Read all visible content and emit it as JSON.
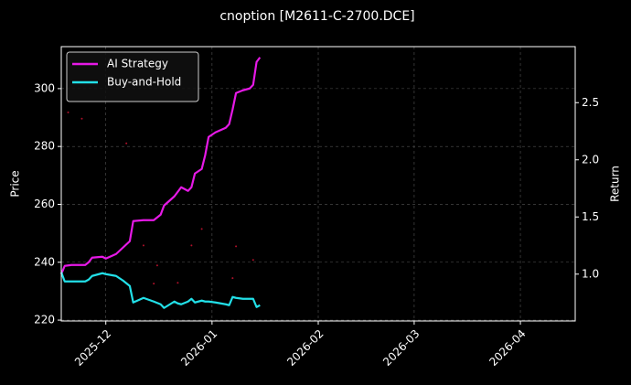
{
  "chart_data": {
    "type": "line",
    "title": "cnoption [M2611-C-2700.DCE]",
    "ylabel": "Price",
    "y2label": "Return",
    "xlim": [
      20410,
      20560
    ],
    "xticks": [
      {
        "value": 20423,
        "label": "2025-12"
      },
      {
        "value": 20454,
        "label": "2026-01"
      },
      {
        "value": 20485,
        "label": "2026-02"
      },
      {
        "value": 20513,
        "label": "2026-03"
      },
      {
        "value": 20544,
        "label": "2026-04"
      }
    ],
    "ylim": [
      219.7,
      314.5
    ],
    "yticks": [
      220,
      240,
      260,
      280,
      300
    ],
    "y2lim": [
      0.59,
      2.99
    ],
    "y2ticks": [
      {
        "value": 1,
        "label": "1.0"
      },
      1.5,
      {
        "value": 2,
        "label": "2.0"
      },
      2.5
    ],
    "grid": true,
    "legend": "upper left",
    "series": [
      {
        "name": "AI Strategy",
        "color": "#e619e6",
        "axis": "y2",
        "x": [
          20410,
          20411,
          20413,
          20417,
          20418,
          20419,
          20422,
          20423,
          20426,
          20428,
          20430,
          20431,
          20434,
          20437,
          20439,
          20440,
          20443,
          20444,
          20445,
          20447,
          20448,
          20449,
          20451,
          20452,
          20453,
          20455,
          20458,
          20459,
          20460,
          20461,
          20463,
          20465,
          20466,
          20467,
          20468
        ],
        "values": [
          1.0,
          1.072,
          1.08,
          1.08,
          1.104,
          1.144,
          1.152,
          1.136,
          1.176,
          1.232,
          1.288,
          1.464,
          1.472,
          1.472,
          1.52,
          1.6,
          1.68,
          1.72,
          1.76,
          1.728,
          1.76,
          1.88,
          1.92,
          2.04,
          2.2,
          2.24,
          2.28,
          2.312,
          2.44,
          2.584,
          2.608,
          2.624,
          2.656,
          2.856,
          2.896
        ]
      },
      {
        "name": "Buy-and-Hold",
        "color": "#22e0e8",
        "axis": "y2",
        "x": [
          20410,
          20411,
          20413,
          20417,
          20418,
          20419,
          20422,
          20423,
          20426,
          20428,
          20430,
          20431,
          20434,
          20437,
          20439,
          20440,
          20443,
          20444,
          20445,
          20447,
          20448,
          20449,
          20451,
          20452,
          20453,
          20455,
          20458,
          20459,
          20460,
          20461,
          20463,
          20465,
          20466,
          20467,
          20468
        ],
        "values": [
          1.016,
          0.936,
          0.936,
          0.936,
          0.952,
          0.984,
          1.008,
          1.0,
          0.984,
          0.944,
          0.896,
          0.752,
          0.792,
          0.76,
          0.736,
          0.704,
          0.76,
          0.744,
          0.736,
          0.76,
          0.784,
          0.752,
          0.768,
          0.76,
          0.76,
          0.752,
          0.736,
          0.728,
          0.8,
          0.792,
          0.784,
          0.784,
          0.784,
          0.712,
          0.728
        ]
      },
      {
        "kind": "scatter",
        "color": "#b0102a",
        "x": [
          20412,
          20416,
          20429,
          20434,
          20438,
          20437,
          20444,
          20448,
          20451,
          20460,
          20461,
          20466
        ],
        "values": [
          291.8,
          289.6,
          281.1,
          245.8,
          238.9,
          232.6,
          232.9,
          245.8,
          251.5,
          234.5,
          245.5,
          240.8
        ]
      }
    ]
  }
}
